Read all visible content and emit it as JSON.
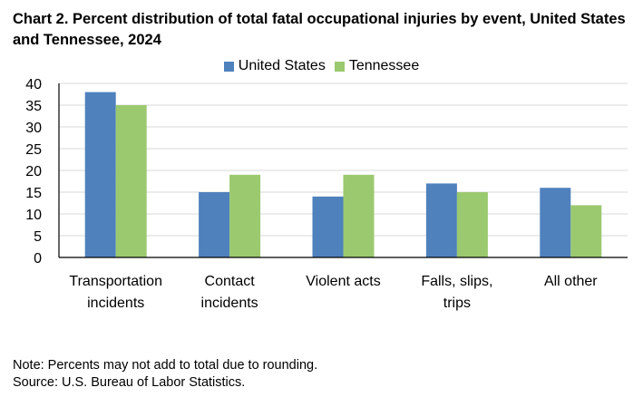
{
  "chart_data": {
    "type": "bar",
    "title": "Chart 2. Percent distribution of total fatal occupational injuries by event, United States and Tennessee, 2024",
    "categories": [
      [
        "Transportation",
        "incidents"
      ],
      [
        "Contact",
        "incidents"
      ],
      [
        "Violent acts"
      ],
      [
        "Falls, slips,",
        "trips"
      ],
      [
        "All other"
      ]
    ],
    "series": [
      {
        "name": "United States",
        "color": "#4F81BD",
        "values": [
          38,
          15,
          14,
          17,
          16
        ]
      },
      {
        "name": "Tennessee",
        "color": "#9BC96F",
        "values": [
          35,
          19,
          19,
          15,
          12
        ]
      }
    ],
    "ylim": [
      0,
      40
    ],
    "yticks": [
      0,
      5,
      10,
      15,
      20,
      25,
      30,
      35,
      40
    ],
    "grid": true,
    "legend_position": "top"
  },
  "notes": {
    "note": "Note: Percents may not add to total due to rounding.",
    "source": "Source: U.S. Bureau of Labor Statistics."
  }
}
